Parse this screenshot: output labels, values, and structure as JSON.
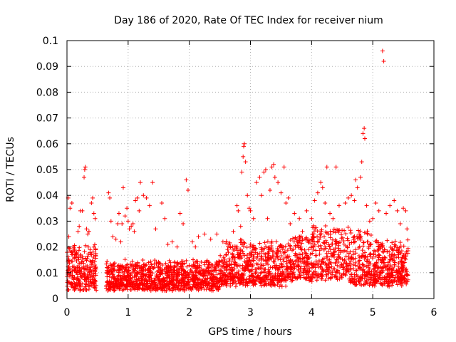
{
  "chart_data": {
    "type": "scatter",
    "title": "Day 186 of 2020, Rate Of TEC Index for receiver nium",
    "xlabel": "GPS time / hours",
    "ylabel": "ROTI / TECUs",
    "xlim": [
      0,
      6
    ],
    "ylim": [
      0,
      0.1
    ],
    "xticks": [
      "0",
      "1",
      "2",
      "3",
      "4",
      "5",
      "6"
    ],
    "yticks": [
      "0",
      "0.01",
      "0.02",
      "0.03",
      "0.04",
      "0.05",
      "0.06",
      "0.07",
      "0.08",
      "0.09",
      "0.1"
    ],
    "grid": true,
    "marker": "plus",
    "color": "#ff0000",
    "series": [
      {
        "points": [
          [
            0.02,
            0.039
          ],
          [
            0.03,
            0.024
          ],
          [
            0.05,
            0.035
          ],
          [
            0.08,
            0.037
          ],
          [
            0.1,
            0.02
          ],
          [
            0.12,
            0.016
          ],
          [
            0.15,
            0.018
          ],
          [
            0.18,
            0.026
          ],
          [
            0.2,
            0.028
          ],
          [
            0.22,
            0.034
          ],
          [
            0.25,
            0.034
          ],
          [
            0.28,
            0.047
          ],
          [
            0.29,
            0.05
          ],
          [
            0.3,
            0.051
          ],
          [
            0.32,
            0.027
          ],
          [
            0.34,
            0.025
          ],
          [
            0.36,
            0.026
          ],
          [
            0.38,
            0.019
          ],
          [
            0.4,
            0.037
          ],
          [
            0.42,
            0.039
          ],
          [
            0.44,
            0.033
          ],
          [
            0.46,
            0.031
          ],
          [
            0.68,
            0.041
          ],
          [
            0.7,
            0.039
          ],
          [
            0.72,
            0.03
          ],
          [
            0.75,
            0.024
          ],
          [
            0.8,
            0.023
          ],
          [
            0.83,
            0.029
          ],
          [
            0.85,
            0.033
          ],
          [
            0.88,
            0.022
          ],
          [
            0.9,
            0.029
          ],
          [
            0.92,
            0.043
          ],
          [
            0.95,
            0.032
          ],
          [
            0.98,
            0.035
          ],
          [
            1.0,
            0.03
          ],
          [
            1.02,
            0.027
          ],
          [
            1.05,
            0.028
          ],
          [
            1.08,
            0.029
          ],
          [
            1.1,
            0.026
          ],
          [
            1.12,
            0.038
          ],
          [
            1.15,
            0.039
          ],
          [
            1.18,
            0.034
          ],
          [
            1.2,
            0.045
          ],
          [
            1.25,
            0.04
          ],
          [
            1.3,
            0.039
          ],
          [
            1.35,
            0.036
          ],
          [
            1.4,
            0.045
          ],
          [
            1.45,
            0.027
          ],
          [
            1.55,
            0.037
          ],
          [
            1.6,
            0.031
          ],
          [
            1.65,
            0.021
          ],
          [
            1.72,
            0.022
          ],
          [
            1.8,
            0.02
          ],
          [
            1.85,
            0.033
          ],
          [
            1.9,
            0.029
          ],
          [
            1.95,
            0.046
          ],
          [
            1.98,
            0.042
          ],
          [
            2.05,
            0.022
          ],
          [
            2.1,
            0.02
          ],
          [
            2.15,
            0.024
          ],
          [
            2.25,
            0.025
          ],
          [
            2.35,
            0.023
          ],
          [
            2.45,
            0.025
          ],
          [
            2.55,
            0.022
          ],
          [
            2.65,
            0.021
          ],
          [
            2.72,
            0.026
          ],
          [
            2.78,
            0.036
          ],
          [
            2.8,
            0.034
          ],
          [
            2.84,
            0.028
          ],
          [
            2.86,
            0.049
          ],
          [
            2.88,
            0.055
          ],
          [
            2.89,
            0.059
          ],
          [
            2.9,
            0.06
          ],
          [
            2.92,
            0.053
          ],
          [
            2.95,
            0.04
          ],
          [
            2.98,
            0.035
          ],
          [
            3.0,
            0.034
          ],
          [
            3.05,
            0.031
          ],
          [
            3.1,
            0.045
          ],
          [
            3.15,
            0.047
          ],
          [
            3.18,
            0.04
          ],
          [
            3.22,
            0.049
          ],
          [
            3.25,
            0.05
          ],
          [
            3.28,
            0.031
          ],
          [
            3.32,
            0.042
          ],
          [
            3.35,
            0.051
          ],
          [
            3.38,
            0.052
          ],
          [
            3.4,
            0.047
          ],
          [
            3.45,
            0.045
          ],
          [
            3.5,
            0.041
          ],
          [
            3.55,
            0.051
          ],
          [
            3.58,
            0.037
          ],
          [
            3.62,
            0.039
          ],
          [
            3.65,
            0.029
          ],
          [
            3.72,
            0.033
          ],
          [
            3.8,
            0.031
          ],
          [
            3.85,
            0.026
          ],
          [
            3.92,
            0.034
          ],
          [
            4.0,
            0.031
          ],
          [
            4.05,
            0.038
          ],
          [
            4.1,
            0.041
          ],
          [
            4.15,
            0.045
          ],
          [
            4.18,
            0.043
          ],
          [
            4.22,
            0.037
          ],
          [
            4.25,
            0.051
          ],
          [
            4.3,
            0.033
          ],
          [
            4.35,
            0.031
          ],
          [
            4.4,
            0.051
          ],
          [
            4.45,
            0.036
          ],
          [
            4.55,
            0.037
          ],
          [
            4.6,
            0.039
          ],
          [
            4.65,
            0.04
          ],
          [
            4.7,
            0.038
          ],
          [
            4.72,
            0.046
          ],
          [
            4.75,
            0.043
          ],
          [
            4.8,
            0.047
          ],
          [
            4.82,
            0.053
          ],
          [
            4.84,
            0.064
          ],
          [
            4.86,
            0.066
          ],
          [
            4.87,
            0.062
          ],
          [
            4.9,
            0.036
          ],
          [
            4.95,
            0.03
          ],
          [
            5.0,
            0.031
          ],
          [
            5.05,
            0.037
          ],
          [
            5.1,
            0.034
          ],
          [
            5.16,
            0.096
          ],
          [
            5.18,
            0.092
          ],
          [
            5.22,
            0.033
          ],
          [
            5.28,
            0.036
          ],
          [
            5.35,
            0.038
          ],
          [
            5.4,
            0.034
          ],
          [
            5.45,
            0.029
          ],
          [
            5.5,
            0.035
          ],
          [
            5.54,
            0.034
          ],
          [
            5.56,
            0.027
          ]
        ]
      }
    ]
  }
}
